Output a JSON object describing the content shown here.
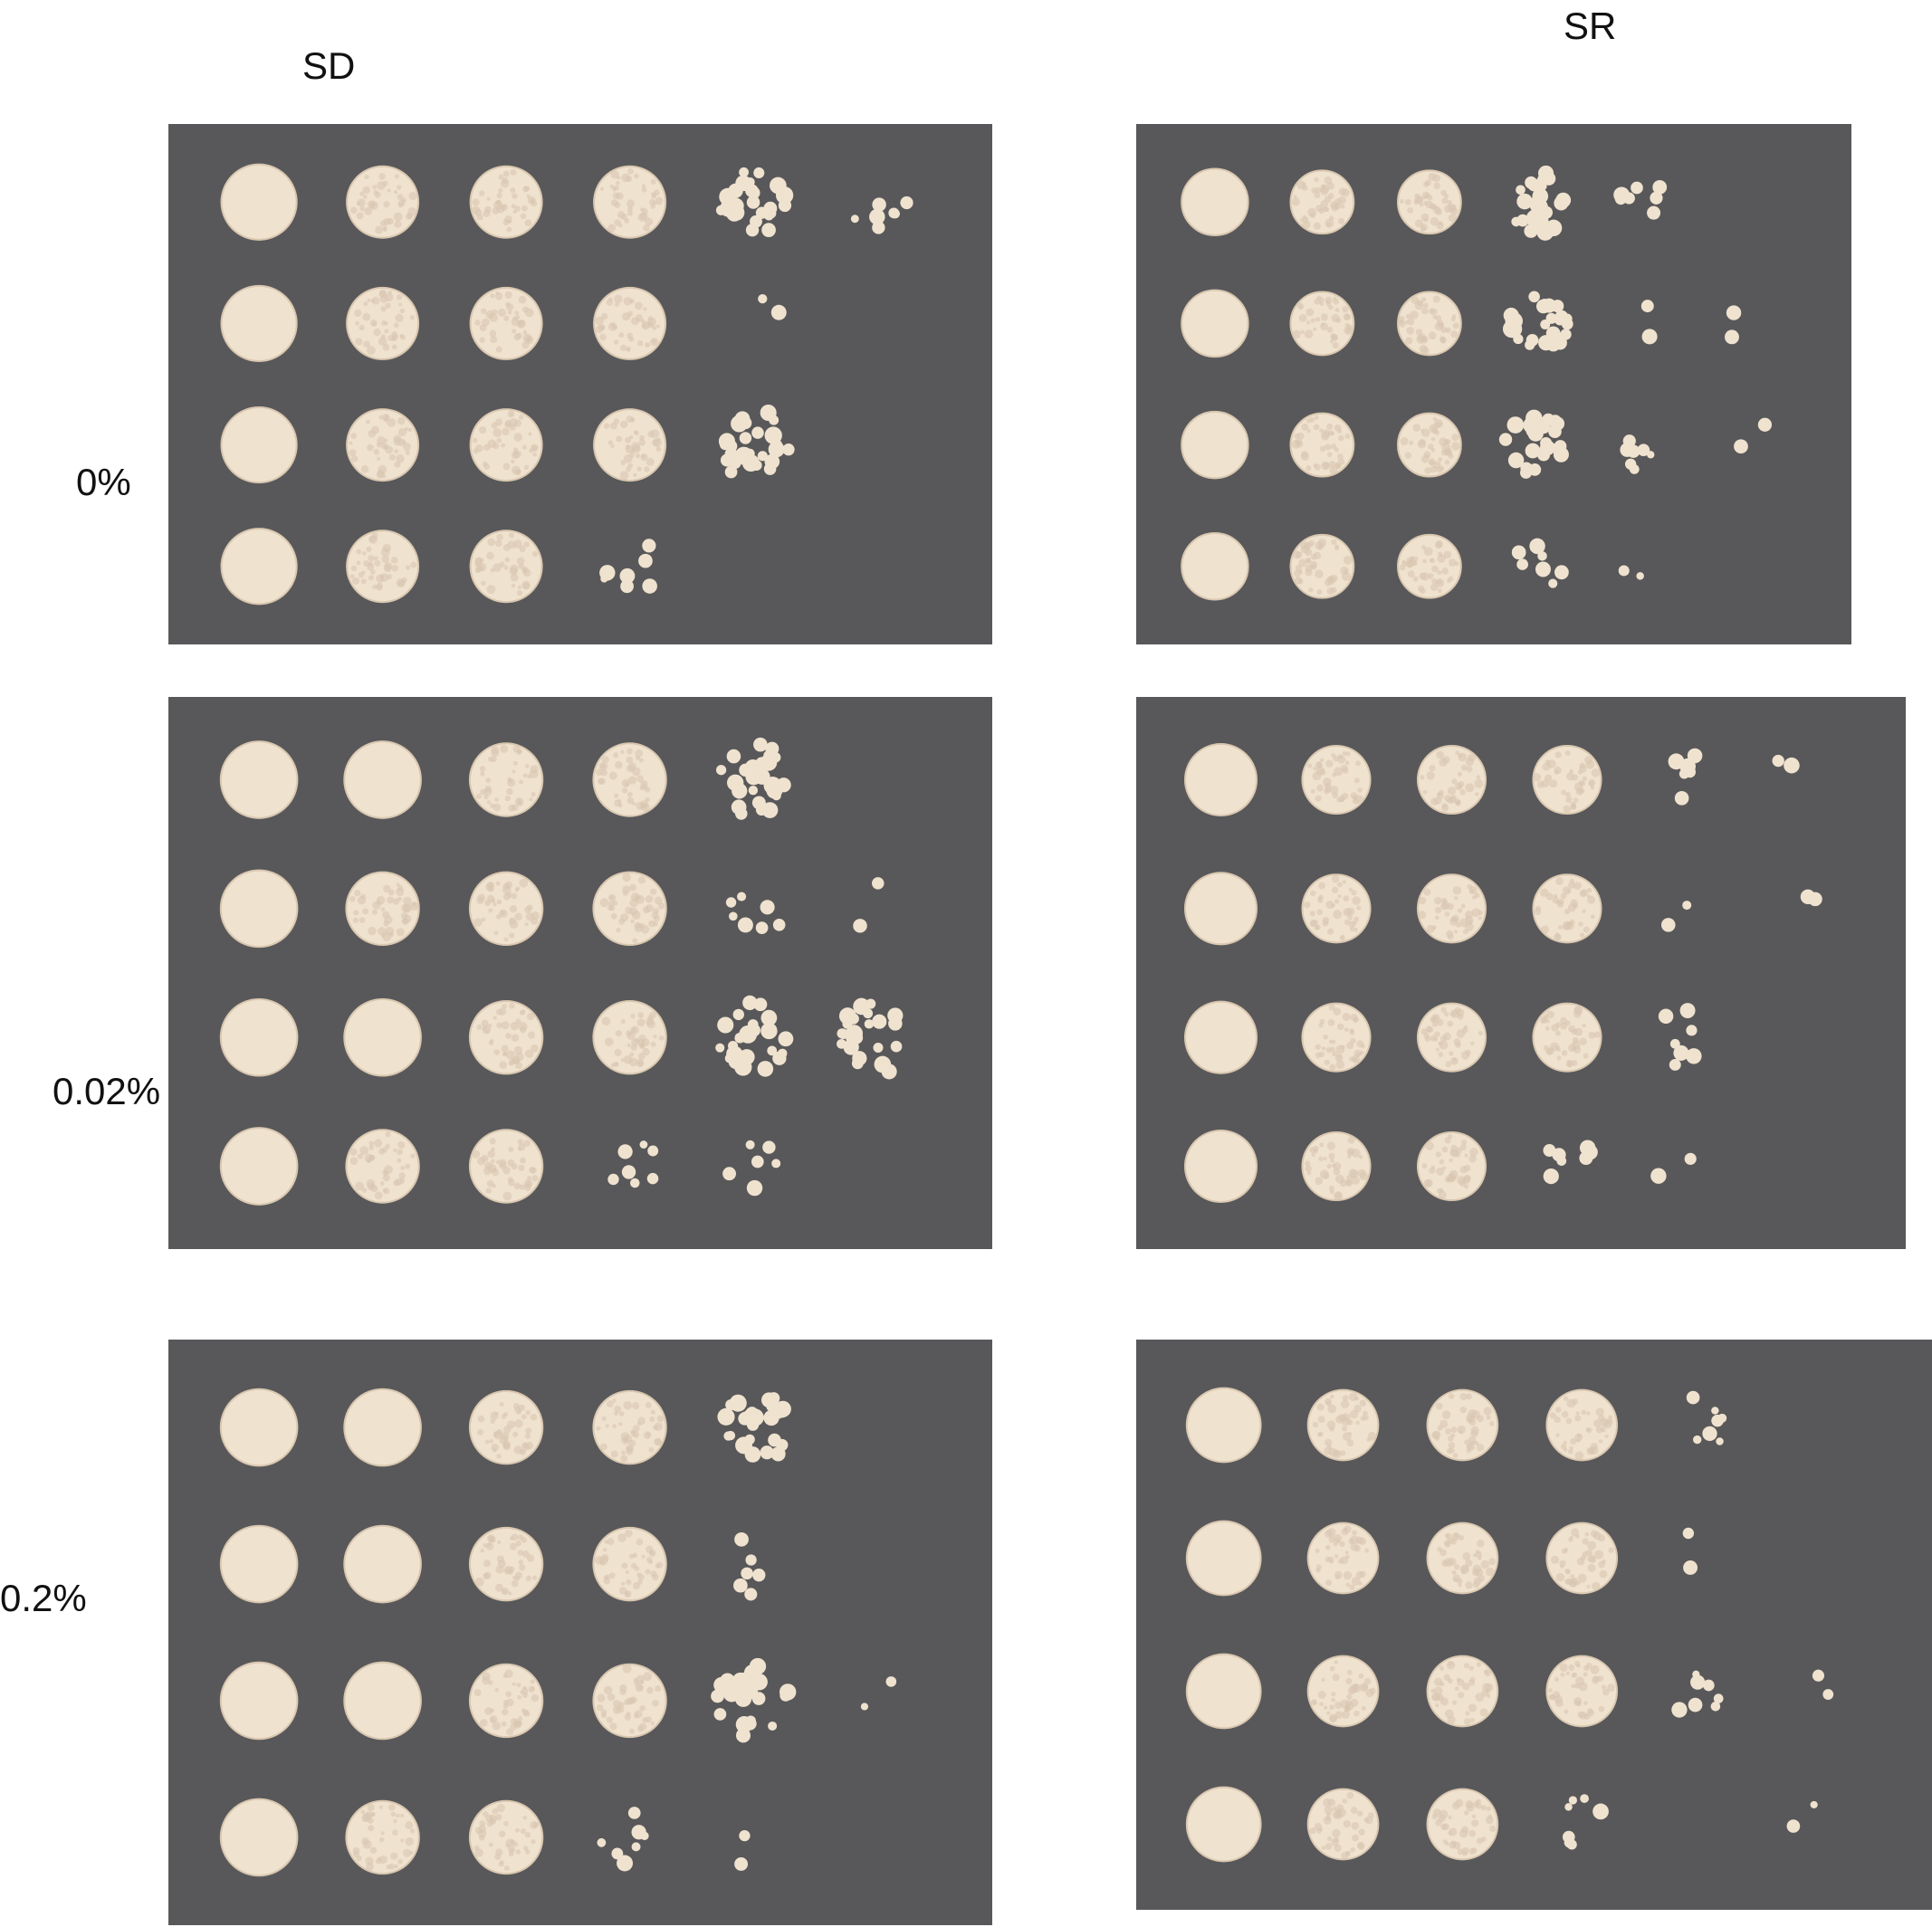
{
  "columns": [
    {
      "id": "sd",
      "label": "SD"
    },
    {
      "id": "sr",
      "label": "SR"
    }
  ],
  "rows": [
    {
      "id": "0",
      "label": "0%"
    },
    {
      "id": "002",
      "label": "0.02%"
    },
    {
      "id": "02",
      "label": "0.2%"
    }
  ],
  "colors": {
    "plate_background": "#58585a",
    "colony": "#efe2cf",
    "colony_edge": "#d9c7b0",
    "page_background": "#ffffff"
  },
  "plates": [
    {
      "column": "sd",
      "row": "0",
      "growth": [
        [
          5,
          4,
          4,
          4,
          3,
          2
        ],
        [
          5,
          4,
          4,
          4,
          1,
          0
        ],
        [
          5,
          4,
          4,
          4,
          3,
          0
        ],
        [
          5,
          4,
          4,
          2,
          0,
          0
        ]
      ]
    },
    {
      "column": "sr",
      "row": "0",
      "growth": [
        [
          5,
          4,
          4,
          3,
          2,
          0
        ],
        [
          5,
          4,
          4,
          3,
          1,
          1
        ],
        [
          5,
          4,
          4,
          3,
          2,
          1
        ],
        [
          5,
          4,
          4,
          2,
          1,
          0
        ]
      ]
    },
    {
      "column": "sd",
      "row": "002",
      "growth": [
        [
          5,
          5,
          4,
          4,
          3,
          0
        ],
        [
          5,
          4,
          4,
          4,
          2,
          1
        ],
        [
          5,
          5,
          4,
          4,
          3,
          3
        ],
        [
          5,
          4,
          4,
          2,
          2,
          0
        ]
      ]
    },
    {
      "column": "sr",
      "row": "002",
      "growth": [
        [
          5,
          4,
          4,
          4,
          2,
          1
        ],
        [
          5,
          4,
          4,
          4,
          1,
          1
        ],
        [
          5,
          4,
          4,
          4,
          2,
          0
        ],
        [
          5,
          4,
          4,
          2,
          1,
          0
        ]
      ]
    },
    {
      "column": "sd",
      "row": "02",
      "growth": [
        [
          5,
          5,
          4,
          4,
          3,
          0
        ],
        [
          5,
          5,
          4,
          4,
          2,
          0
        ],
        [
          5,
          5,
          4,
          4,
          3,
          1
        ],
        [
          5,
          4,
          4,
          2,
          1,
          0
        ]
      ]
    },
    {
      "column": "sr",
      "row": "02",
      "growth": [
        [
          5,
          4,
          4,
          4,
          2,
          0
        ],
        [
          5,
          4,
          4,
          4,
          1,
          0
        ],
        [
          5,
          4,
          4,
          4,
          2,
          1
        ],
        [
          5,
          4,
          4,
          2,
          0,
          1
        ]
      ]
    }
  ]
}
